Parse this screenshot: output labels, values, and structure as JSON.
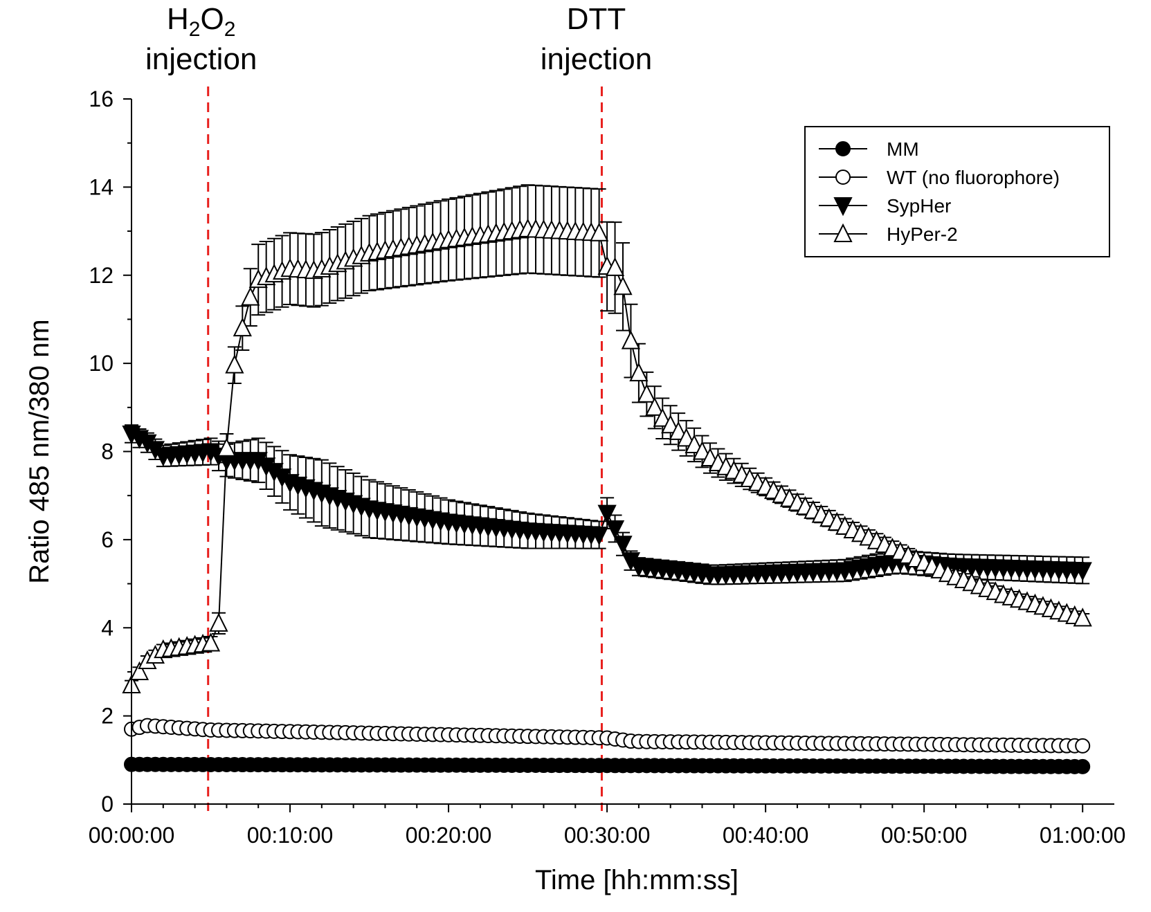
{
  "colors": {
    "marker_line": "#000000",
    "event_line": "#e8201e",
    "filled_marker": "#000000",
    "open_marker": "#ffffff"
  },
  "chart_data": {
    "type": "line",
    "xlabel": "Time [hh:mm:ss]",
    "ylabel": "Ratio 485 nm/380 nm",
    "xlim": [
      0,
      3720
    ],
    "ylim": [
      0,
      16
    ],
    "x_ticks": [
      {
        "value": 0,
        "label": "00:00:00"
      },
      {
        "value": 600,
        "label": "00:10:00"
      },
      {
        "value": 1200,
        "label": "00:20:00"
      },
      {
        "value": 1800,
        "label": "00:30:00"
      },
      {
        "value": 2400,
        "label": "00:40:00"
      },
      {
        "value": 3000,
        "label": "00:50:00"
      },
      {
        "value": 3600,
        "label": "01:00:00"
      }
    ],
    "y_ticks": [
      0,
      2,
      4,
      6,
      8,
      10,
      12,
      14,
      16
    ],
    "grid": false,
    "legend_position": "top-right",
    "events": [
      {
        "x": 290,
        "label_main": "H",
        "label_sub1": "2",
        "label_mid": "O",
        "label_sub2": "2",
        "label_line2": "injection"
      },
      {
        "x": 1780,
        "label_line1": "DTT",
        "label_line2": "injection"
      }
    ],
    "series": [
      {
        "name": "MM",
        "marker": "filled-circle",
        "x_start": 0,
        "x_end": 3610,
        "key": [
          [
            0,
            0.9
          ],
          [
            3610,
            0.85
          ]
        ],
        "error": []
      },
      {
        "name": "WT (no fluorophore)",
        "marker": "open-circle",
        "x_start": 0,
        "x_end": 3610,
        "key": [
          [
            0,
            1.7
          ],
          [
            60,
            1.78
          ],
          [
            300,
            1.68
          ],
          [
            1800,
            1.5
          ],
          [
            1900,
            1.42
          ],
          [
            3610,
            1.32
          ]
        ],
        "error": []
      },
      {
        "name": "SypHer",
        "marker": "filled-triangle-down",
        "x_start": 0,
        "x_end": 3610,
        "key": [
          [
            0,
            8.4
          ],
          [
            60,
            8.2
          ],
          [
            120,
            7.9
          ],
          [
            300,
            8.0
          ],
          [
            360,
            7.8
          ],
          [
            480,
            7.8
          ],
          [
            600,
            7.3
          ],
          [
            900,
            6.7
          ],
          [
            1200,
            6.4
          ],
          [
            1500,
            6.2
          ],
          [
            1790,
            6.1
          ],
          [
            1800,
            6.6
          ],
          [
            1860,
            5.9
          ],
          [
            1900,
            5.4
          ],
          [
            2200,
            5.2
          ],
          [
            2700,
            5.3
          ],
          [
            2900,
            5.5
          ],
          [
            3100,
            5.4
          ],
          [
            3610,
            5.3
          ]
        ],
        "error": [
          [
            0,
            0.2
          ],
          [
            300,
            0.3
          ],
          [
            480,
            0.5
          ],
          [
            720,
            0.75
          ],
          [
            1200,
            0.5
          ],
          [
            1790,
            0.3
          ],
          [
            1800,
            0.35
          ],
          [
            1900,
            0.2
          ],
          [
            3610,
            0.3
          ]
        ]
      },
      {
        "name": "HyPer-2",
        "marker": "open-triangle-up",
        "x_start": 0,
        "x_end": 3610,
        "key": [
          [
            0,
            2.7
          ],
          [
            30,
            3.0
          ],
          [
            60,
            3.25
          ],
          [
            120,
            3.5
          ],
          [
            300,
            3.65
          ],
          [
            330,
            4.1
          ],
          [
            370,
            9.4
          ],
          [
            420,
            10.8
          ],
          [
            450,
            11.5
          ],
          [
            480,
            11.9
          ],
          [
            600,
            12.15
          ],
          [
            700,
            12.1
          ],
          [
            900,
            12.5
          ],
          [
            1200,
            12.8
          ],
          [
            1500,
            13.05
          ],
          [
            1790,
            12.95
          ],
          [
            1800,
            12.2
          ],
          [
            1850,
            12.15
          ],
          [
            1900,
            10.1
          ],
          [
            1950,
            9.3
          ],
          [
            2000,
            8.8
          ],
          [
            2200,
            7.8
          ],
          [
            2400,
            7.2
          ],
          [
            2700,
            6.3
          ],
          [
            2900,
            5.75
          ],
          [
            3100,
            5.2
          ],
          [
            3300,
            4.75
          ],
          [
            3610,
            4.2
          ]
        ],
        "error": [
          [
            0,
            0.1
          ],
          [
            300,
            0.15
          ],
          [
            420,
            0.5
          ],
          [
            480,
            0.8
          ],
          [
            900,
            0.85
          ],
          [
            1500,
            1.0
          ],
          [
            1790,
            1.0
          ],
          [
            1850,
            1.05
          ],
          [
            1950,
            0.5
          ],
          [
            2400,
            0.2
          ],
          [
            3610,
            0.1
          ]
        ]
      }
    ]
  }
}
